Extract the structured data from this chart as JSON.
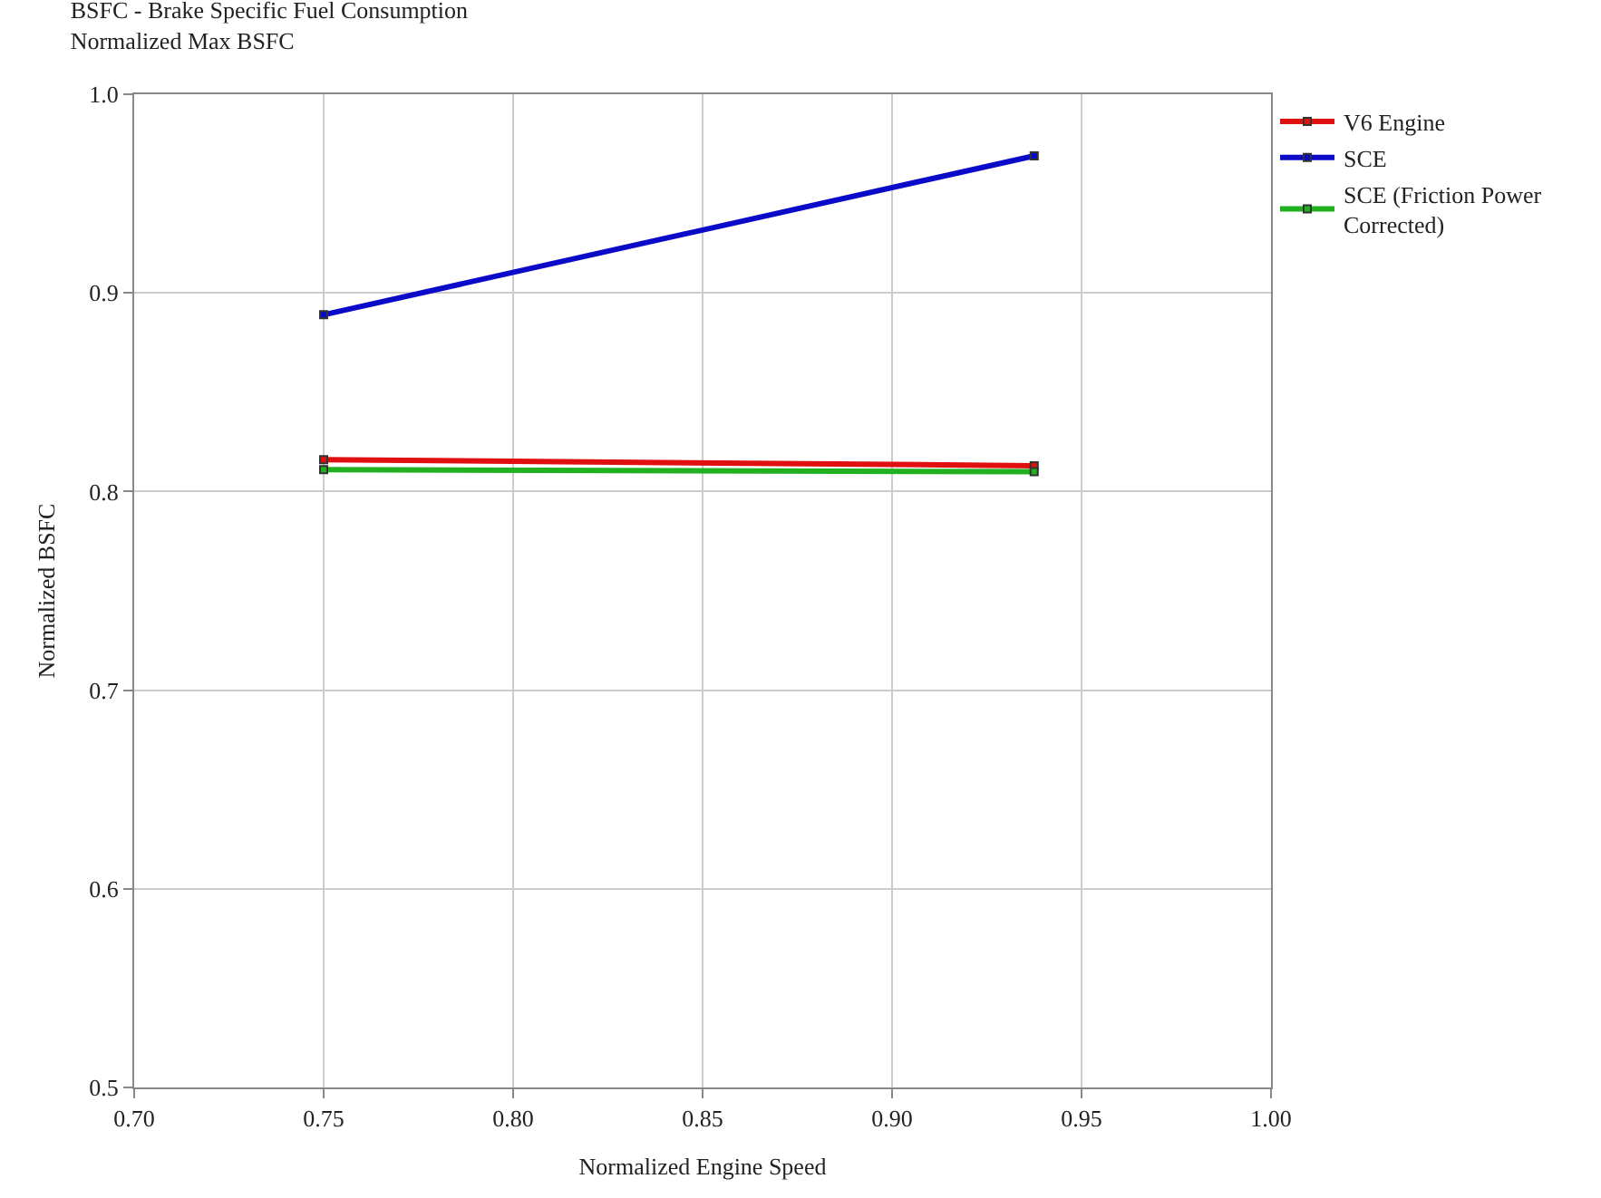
{
  "chart_data": {
    "type": "line",
    "title": "BSFC - Brake Specific Fuel Consumption",
    "subtitle": "Normalized Max BSFC",
    "xlabel": "Normalized Engine Speed",
    "ylabel": "Normalized BSFC",
    "x": [
      0.75,
      0.9375
    ],
    "series": [
      {
        "name": "V6 Engine",
        "color": "#e01010",
        "values": [
          0.816,
          0.813
        ]
      },
      {
        "name": "SCE",
        "color": "#0a0ac8",
        "values": [
          0.889,
          0.969
        ]
      },
      {
        "name": "SCE (Friction Power\nCorrected)",
        "color": "#20b020",
        "values": [
          0.811,
          0.81
        ]
      }
    ],
    "xlim": [
      0.7,
      1.0
    ],
    "xticks": [
      {
        "value": 0.7,
        "label": "0.70"
      },
      {
        "value": 0.75,
        "label": "0.75"
      },
      {
        "value": 0.8,
        "label": "0.80"
      },
      {
        "value": 0.85,
        "label": "0.85"
      },
      {
        "value": 0.9,
        "label": "0.90"
      },
      {
        "value": 0.95,
        "label": "0.95"
      },
      {
        "value": 1.0,
        "label": "1.00"
      }
    ],
    "ylim": [
      0.5,
      1.0
    ],
    "yticks": [
      0.5,
      0.6,
      0.7,
      0.8,
      0.9,
      {
        "value": 1.0,
        "label": "1.0"
      }
    ],
    "grid": true,
    "legend": "top right",
    "marker": "square",
    "line_style": "solid"
  }
}
